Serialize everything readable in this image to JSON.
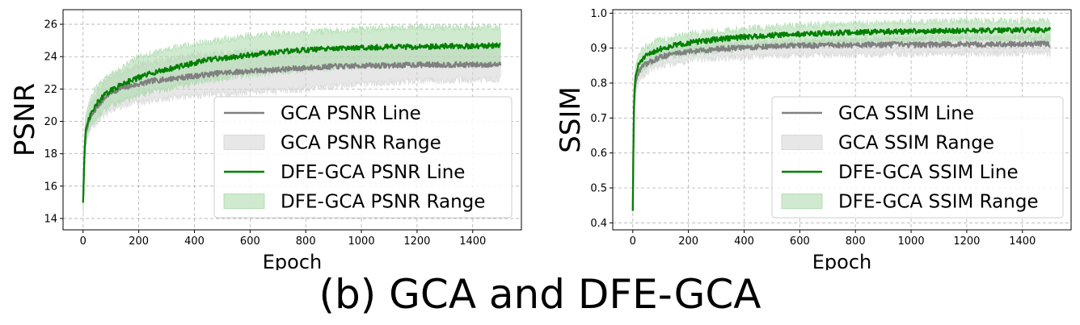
{
  "caption": "(b) GCA and DFE-GCA",
  "colors": {
    "gca": "#808080",
    "gca_band": "#d3d3d3",
    "dfe": "#008000",
    "dfe_band": "#a8d8a8",
    "grid": "#b0b0b0"
  },
  "chart_data": [
    {
      "type": "line",
      "ylabel": "PSNR",
      "xlabel": "Epoch",
      "xlim": [
        -72,
        1575
      ],
      "ylim": [
        13.3,
        26.9
      ],
      "xticks": [
        0,
        200,
        400,
        600,
        800,
        1000,
        1200,
        1400
      ],
      "yticks": [
        14,
        16,
        18,
        20,
        22,
        24,
        26
      ],
      "grid": true,
      "legend_position": "lower-right",
      "series": [
        {
          "name": "GCA PSNR Line",
          "kind": "line",
          "color": "#808080",
          "x": [
            0,
            5,
            10,
            20,
            30,
            50,
            75,
            100,
            150,
            200,
            250,
            300,
            350,
            400,
            450,
            500,
            550,
            600,
            650,
            700,
            750,
            800,
            850,
            900,
            950,
            1000,
            1100,
            1200,
            1300,
            1400,
            1500
          ],
          "y": [
            15.0,
            18.0,
            19.3,
            19.9,
            20.3,
            20.9,
            21.4,
            21.8,
            22.1,
            22.3,
            22.5,
            22.6,
            22.7,
            22.8,
            22.9,
            23.0,
            23.05,
            23.1,
            23.15,
            23.2,
            23.25,
            23.3,
            23.35,
            23.4,
            23.4,
            23.45,
            23.45,
            23.5,
            23.5,
            23.5,
            23.5
          ]
        },
        {
          "name": "GCA PSNR Range",
          "kind": "band",
          "color": "#d3d3d3",
          "x": [
            0,
            5,
            10,
            20,
            30,
            50,
            100,
            200,
            400,
            600,
            800,
            1000,
            1200,
            1500
          ],
          "lower": [
            14.0,
            17.0,
            18.5,
            19.2,
            19.6,
            20.0,
            20.7,
            21.2,
            21.6,
            21.8,
            22.0,
            22.3,
            22.5,
            22.6
          ],
          "upper": [
            15.6,
            19.0,
            20.2,
            20.8,
            21.2,
            21.8,
            22.8,
            23.5,
            24.1,
            24.3,
            24.4,
            24.6,
            24.6,
            24.6
          ]
        },
        {
          "name": "DFE-GCA PSNR Line",
          "kind": "line",
          "color": "#008000",
          "x": [
            0,
            5,
            10,
            20,
            30,
            50,
            75,
            100,
            150,
            200,
            250,
            300,
            350,
            400,
            450,
            500,
            550,
            600,
            650,
            700,
            750,
            800,
            850,
            900,
            950,
            1000,
            1100,
            1200,
            1300,
            1400,
            1500
          ],
          "y": [
            15.0,
            18.2,
            19.5,
            20.1,
            20.5,
            21.1,
            21.6,
            21.9,
            22.4,
            22.7,
            23.0,
            23.2,
            23.4,
            23.6,
            23.8,
            23.9,
            24.0,
            24.1,
            24.2,
            24.3,
            24.35,
            24.4,
            24.45,
            24.5,
            24.5,
            24.55,
            24.6,
            24.6,
            24.65,
            24.65,
            24.7
          ]
        },
        {
          "name": "DFE-GCA PSNR Range",
          "kind": "band",
          "color": "#a8d8a8",
          "x": [
            0,
            5,
            10,
            20,
            30,
            50,
            100,
            200,
            400,
            600,
            800,
            1000,
            1200,
            1500
          ],
          "lower": [
            14.2,
            17.2,
            18.7,
            19.4,
            19.8,
            20.3,
            21.0,
            21.6,
            22.4,
            22.9,
            23.2,
            23.4,
            23.5,
            23.5
          ],
          "upper": [
            15.8,
            19.3,
            20.5,
            21.1,
            21.6,
            22.2,
            23.0,
            24.0,
            24.8,
            25.3,
            25.5,
            25.7,
            25.8,
            25.8
          ]
        }
      ]
    },
    {
      "type": "line",
      "ylabel": "SSIM",
      "xlabel": "Epoch",
      "xlim": [
        -72,
        1575
      ],
      "ylim": [
        0.38,
        1.01
      ],
      "xticks": [
        0,
        200,
        400,
        600,
        800,
        1000,
        1200,
        1400
      ],
      "yticks": [
        0.4,
        0.5,
        0.6,
        0.7,
        0.8,
        0.9,
        1.0
      ],
      "grid": true,
      "legend_position": "lower-right",
      "series": [
        {
          "name": "GCA SSIM Line",
          "kind": "line",
          "color": "#808080",
          "x": [
            0,
            3,
            6,
            10,
            20,
            30,
            50,
            75,
            100,
            150,
            200,
            300,
            400,
            500,
            600,
            700,
            800,
            900,
            1000,
            1100,
            1200,
            1300,
            1400,
            1500
          ],
          "y": [
            0.435,
            0.68,
            0.76,
            0.8,
            0.83,
            0.845,
            0.855,
            0.865,
            0.875,
            0.885,
            0.89,
            0.897,
            0.902,
            0.905,
            0.907,
            0.908,
            0.909,
            0.91,
            0.91,
            0.91,
            0.911,
            0.911,
            0.912,
            0.912
          ]
        },
        {
          "name": "GCA SSIM Range",
          "kind": "band",
          "color": "#d3d3d3",
          "x": [
            0,
            3,
            6,
            10,
            20,
            30,
            50,
            100,
            200,
            400,
            600,
            800,
            1000,
            1200,
            1500
          ],
          "lower": [
            0.43,
            0.65,
            0.73,
            0.77,
            0.8,
            0.815,
            0.83,
            0.85,
            0.865,
            0.875,
            0.88,
            0.882,
            0.884,
            0.885,
            0.885
          ],
          "upper": [
            0.44,
            0.71,
            0.79,
            0.83,
            0.86,
            0.87,
            0.88,
            0.895,
            0.905,
            0.915,
            0.92,
            0.925,
            0.93,
            0.932,
            0.932
          ]
        },
        {
          "name": "DFE-GCA SSIM Line",
          "kind": "line",
          "color": "#008000",
          "x": [
            0,
            3,
            6,
            10,
            20,
            30,
            50,
            75,
            100,
            150,
            200,
            300,
            400,
            500,
            600,
            700,
            800,
            900,
            1000,
            1100,
            1200,
            1300,
            1400,
            1500
          ],
          "y": [
            0.435,
            0.7,
            0.78,
            0.82,
            0.85,
            0.865,
            0.878,
            0.89,
            0.898,
            0.908,
            0.915,
            0.925,
            0.932,
            0.937,
            0.94,
            0.943,
            0.945,
            0.947,
            0.948,
            0.949,
            0.95,
            0.95,
            0.951,
            0.951
          ]
        },
        {
          "name": "DFE-GCA SSIM Range",
          "kind": "band",
          "color": "#a8d8a8",
          "x": [
            0,
            3,
            6,
            10,
            20,
            30,
            50,
            100,
            200,
            400,
            600,
            800,
            1000,
            1200,
            1500
          ],
          "lower": [
            0.43,
            0.67,
            0.75,
            0.79,
            0.82,
            0.835,
            0.85,
            0.87,
            0.885,
            0.9,
            0.91,
            0.918,
            0.922,
            0.925,
            0.925
          ],
          "upper": [
            0.44,
            0.73,
            0.81,
            0.85,
            0.88,
            0.89,
            0.905,
            0.925,
            0.94,
            0.955,
            0.965,
            0.97,
            0.975,
            0.977,
            0.977
          ]
        }
      ]
    }
  ]
}
